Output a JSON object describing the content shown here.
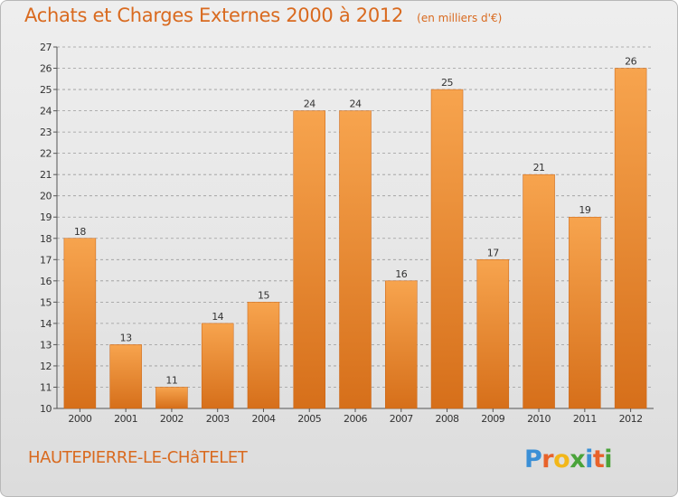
{
  "header": {
    "title": "Achats et Charges Externes 2000 à 2012",
    "subtitle": "(en milliers d'€)"
  },
  "footer": {
    "town": "HAUTEPIERRE-LE-CHâTELET",
    "brand": "Proxiti"
  },
  "colors": {
    "bar_light": "#f7a44e",
    "bar_dark": "#d66f1a",
    "title": "#d96a1f",
    "grid": "#9a9a9a"
  },
  "chart_data": {
    "type": "bar",
    "title": "Achats et Charges Externes 2000 à 2012",
    "subtitle": "(en milliers d'€)",
    "xlabel": "",
    "ylabel": "",
    "categories": [
      "2000",
      "2001",
      "2002",
      "2003",
      "2004",
      "2005",
      "2006",
      "2007",
      "2008",
      "2009",
      "2010",
      "2011",
      "2012"
    ],
    "values": [
      18,
      13,
      11,
      14,
      15,
      24,
      24,
      16,
      25,
      17,
      21,
      19,
      26
    ],
    "ylim": [
      10,
      27
    ],
    "yticks": [
      10,
      11,
      12,
      13,
      14,
      15,
      16,
      17,
      18,
      19,
      20,
      21,
      22,
      23,
      24,
      25,
      26,
      27
    ],
    "grid": true,
    "grid_style": "dashed horizontal",
    "data_labels": true,
    "legend": "none"
  }
}
